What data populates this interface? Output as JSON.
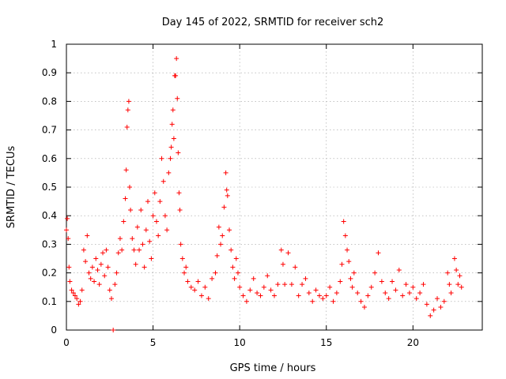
{
  "chart_data": {
    "type": "scatter",
    "title": "Day 145 of 2022, SRMTID for receiver sch2",
    "xlabel": "GPS time / hours",
    "ylabel": "SRMTID / TECUs",
    "xlim": [
      0,
      24
    ],
    "ylim": [
      0,
      1
    ],
    "xticks": [
      0,
      5,
      10,
      15,
      20
    ],
    "yticks": [
      0,
      0.1,
      0.2,
      0.3,
      0.4,
      0.5,
      0.6,
      0.7,
      0.8,
      0.9,
      1
    ],
    "ytick_labels": [
      "0",
      "0.1",
      "0.2",
      "0.3",
      "0.4",
      "0.5",
      "0.6",
      "0.7",
      "0.8",
      "0.9",
      "1"
    ],
    "grid": true,
    "marker": "+",
    "color": "#ff0000",
    "series": [
      {
        "name": "SRMTID",
        "points": [
          [
            0.0,
            0.35
          ],
          [
            0.05,
            0.39
          ],
          [
            0.1,
            0.32
          ],
          [
            0.15,
            0.22
          ],
          [
            0.2,
            0.17
          ],
          [
            0.3,
            0.14
          ],
          [
            0.4,
            0.13
          ],
          [
            0.5,
            0.12
          ],
          [
            0.6,
            0.11
          ],
          [
            0.7,
            0.09
          ],
          [
            0.8,
            0.1
          ],
          [
            0.9,
            0.14
          ],
          [
            1.0,
            0.28
          ],
          [
            1.1,
            0.24
          ],
          [
            1.2,
            0.33
          ],
          [
            1.3,
            0.2
          ],
          [
            1.4,
            0.18
          ],
          [
            1.5,
            0.22
          ],
          [
            1.6,
            0.17
          ],
          [
            1.7,
            0.25
          ],
          [
            1.8,
            0.21
          ],
          [
            1.9,
            0.16
          ],
          [
            2.0,
            0.23
          ],
          [
            2.1,
            0.27
          ],
          [
            2.2,
            0.19
          ],
          [
            2.3,
            0.28
          ],
          [
            2.4,
            0.22
          ],
          [
            2.5,
            0.14
          ],
          [
            2.6,
            0.11
          ],
          [
            2.7,
            0.0
          ],
          [
            2.8,
            0.16
          ],
          [
            2.9,
            0.2
          ],
          [
            3.0,
            0.27
          ],
          [
            3.1,
            0.32
          ],
          [
            3.2,
            0.28
          ],
          [
            3.3,
            0.38
          ],
          [
            3.4,
            0.46
          ],
          [
            3.45,
            0.56
          ],
          [
            3.5,
            0.71
          ],
          [
            3.55,
            0.77
          ],
          [
            3.6,
            0.8
          ],
          [
            3.65,
            0.5
          ],
          [
            3.7,
            0.42
          ],
          [
            3.8,
            0.32
          ],
          [
            3.9,
            0.28
          ],
          [
            4.0,
            0.23
          ],
          [
            4.1,
            0.36
          ],
          [
            4.2,
            0.28
          ],
          [
            4.3,
            0.42
          ],
          [
            4.4,
            0.3
          ],
          [
            4.5,
            0.22
          ],
          [
            4.6,
            0.35
          ],
          [
            4.7,
            0.45
          ],
          [
            4.8,
            0.31
          ],
          [
            4.9,
            0.25
          ],
          [
            5.0,
            0.4
          ],
          [
            5.1,
            0.48
          ],
          [
            5.2,
            0.38
          ],
          [
            5.3,
            0.33
          ],
          [
            5.4,
            0.45
          ],
          [
            5.5,
            0.6
          ],
          [
            5.6,
            0.52
          ],
          [
            5.7,
            0.4
          ],
          [
            5.8,
            0.35
          ],
          [
            5.9,
            0.55
          ],
          [
            6.0,
            0.6
          ],
          [
            6.05,
            0.64
          ],
          [
            6.1,
            0.72
          ],
          [
            6.15,
            0.77
          ],
          [
            6.2,
            0.67
          ],
          [
            6.25,
            0.89
          ],
          [
            6.3,
            0.89
          ],
          [
            6.35,
            0.95
          ],
          [
            6.4,
            0.81
          ],
          [
            6.45,
            0.62
          ],
          [
            6.5,
            0.48
          ],
          [
            6.55,
            0.42
          ],
          [
            6.6,
            0.3
          ],
          [
            6.7,
            0.25
          ],
          [
            6.8,
            0.2
          ],
          [
            6.9,
            0.22
          ],
          [
            7.0,
            0.17
          ],
          [
            7.2,
            0.15
          ],
          [
            7.4,
            0.14
          ],
          [
            7.6,
            0.17
          ],
          [
            7.8,
            0.12
          ],
          [
            8.0,
            0.15
          ],
          [
            8.2,
            0.11
          ],
          [
            8.4,
            0.18
          ],
          [
            8.6,
            0.2
          ],
          [
            8.7,
            0.26
          ],
          [
            8.8,
            0.36
          ],
          [
            8.9,
            0.3
          ],
          [
            9.0,
            0.33
          ],
          [
            9.1,
            0.43
          ],
          [
            9.2,
            0.55
          ],
          [
            9.25,
            0.49
          ],
          [
            9.3,
            0.47
          ],
          [
            9.4,
            0.35
          ],
          [
            9.5,
            0.28
          ],
          [
            9.6,
            0.22
          ],
          [
            9.7,
            0.18
          ],
          [
            9.8,
            0.25
          ],
          [
            9.9,
            0.2
          ],
          [
            10.0,
            0.15
          ],
          [
            10.2,
            0.12
          ],
          [
            10.4,
            0.1
          ],
          [
            10.6,
            0.14
          ],
          [
            10.8,
            0.18
          ],
          [
            11.0,
            0.13
          ],
          [
            11.2,
            0.12
          ],
          [
            11.4,
            0.15
          ],
          [
            11.6,
            0.19
          ],
          [
            11.8,
            0.14
          ],
          [
            12.0,
            0.12
          ],
          [
            12.2,
            0.16
          ],
          [
            12.4,
            0.28
          ],
          [
            12.5,
            0.23
          ],
          [
            12.6,
            0.16
          ],
          [
            12.8,
            0.27
          ],
          [
            13.0,
            0.16
          ],
          [
            13.2,
            0.22
          ],
          [
            13.4,
            0.12
          ],
          [
            13.6,
            0.16
          ],
          [
            13.8,
            0.18
          ],
          [
            14.0,
            0.13
          ],
          [
            14.2,
            0.1
          ],
          [
            14.4,
            0.14
          ],
          [
            14.6,
            0.12
          ],
          [
            14.8,
            0.11
          ],
          [
            15.0,
            0.12
          ],
          [
            15.2,
            0.15
          ],
          [
            15.4,
            0.1
          ],
          [
            15.6,
            0.13
          ],
          [
            15.8,
            0.17
          ],
          [
            15.9,
            0.23
          ],
          [
            16.0,
            0.38
          ],
          [
            16.1,
            0.33
          ],
          [
            16.2,
            0.28
          ],
          [
            16.3,
            0.24
          ],
          [
            16.4,
            0.18
          ],
          [
            16.5,
            0.15
          ],
          [
            16.6,
            0.2
          ],
          [
            16.8,
            0.13
          ],
          [
            17.0,
            0.1
          ],
          [
            17.2,
            0.08
          ],
          [
            17.4,
            0.12
          ],
          [
            17.6,
            0.15
          ],
          [
            17.8,
            0.2
          ],
          [
            18.0,
            0.27
          ],
          [
            18.2,
            0.17
          ],
          [
            18.4,
            0.13
          ],
          [
            18.6,
            0.11
          ],
          [
            18.8,
            0.17
          ],
          [
            19.0,
            0.14
          ],
          [
            19.2,
            0.21
          ],
          [
            19.4,
            0.12
          ],
          [
            19.6,
            0.16
          ],
          [
            19.8,
            0.13
          ],
          [
            20.0,
            0.15
          ],
          [
            20.2,
            0.11
          ],
          [
            20.4,
            0.13
          ],
          [
            20.6,
            0.16
          ],
          [
            20.8,
            0.09
          ],
          [
            21.0,
            0.05
          ],
          [
            21.2,
            0.07
          ],
          [
            21.4,
            0.11
          ],
          [
            21.6,
            0.08
          ],
          [
            21.8,
            0.1
          ],
          [
            22.0,
            0.2
          ],
          [
            22.1,
            0.16
          ],
          [
            22.2,
            0.13
          ],
          [
            22.4,
            0.25
          ],
          [
            22.5,
            0.21
          ],
          [
            22.6,
            0.16
          ],
          [
            22.7,
            0.19
          ],
          [
            22.8,
            0.15
          ]
        ]
      }
    ]
  }
}
